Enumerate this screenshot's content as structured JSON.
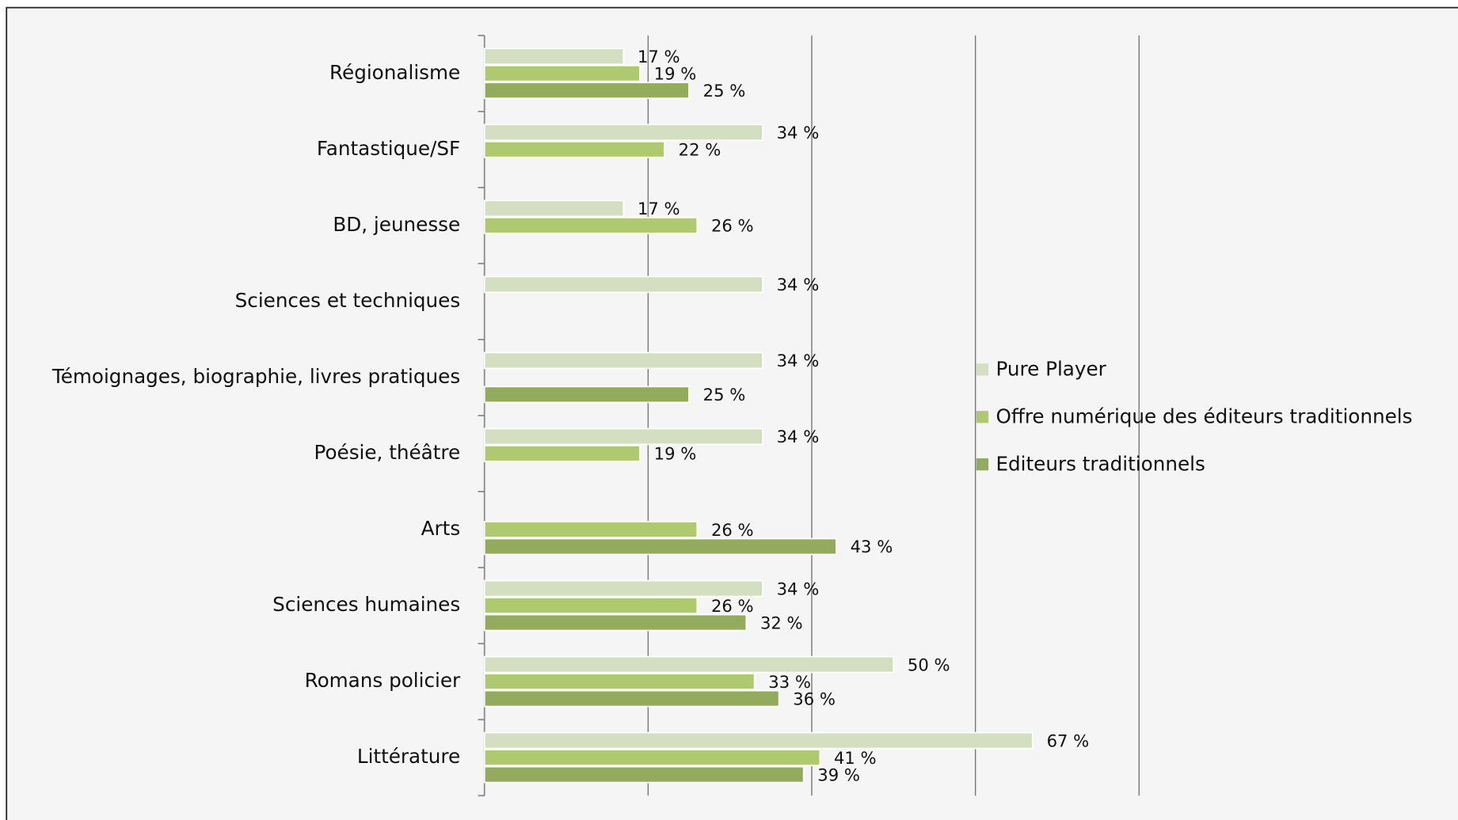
{
  "chart_data": {
    "type": "bar",
    "orientation": "horizontal",
    "categories": [
      "Régionalisme",
      "Fantastique/SF",
      "BD, jeunesse",
      "Sciences et techniques",
      "Témoignages, biographie, livres pratiques",
      "Poésie, théâtre",
      "Arts",
      "Sciences humaines",
      "Romans policier",
      "Littérature"
    ],
    "series": [
      {
        "name": "Pure Player",
        "color": "#d3dfc0",
        "values": [
          17,
          34,
          17,
          34,
          34,
          34,
          null,
          34,
          50,
          67
        ],
        "value_labels": [
          "17 %",
          "34 %",
          "17 %",
          "34 %",
          "34 %",
          "34 %",
          null,
          "34 %",
          "50 %",
          "67 %"
        ]
      },
      {
        "name": "Offre numérique des éditeurs traditionnels",
        "color": "#aec96e",
        "values": [
          19,
          22,
          26,
          null,
          null,
          19,
          26,
          26,
          33,
          41
        ],
        "value_labels": [
          "19 %",
          "22 %",
          "26 %",
          null,
          null,
          "19 %",
          "26 %",
          "26 %",
          "33 %",
          "41 %"
        ]
      },
      {
        "name": "Editeurs traditionnels",
        "color": "#93ab5c",
        "values": [
          25,
          null,
          null,
          null,
          25,
          null,
          43,
          32,
          36,
          39
        ],
        "value_labels": [
          "25 %",
          null,
          null,
          null,
          "25 %",
          null,
          "43 %",
          "32 %",
          "36 %",
          "39 %"
        ]
      }
    ],
    "xlim": [
      0,
      80
    ],
    "xticks": [
      0,
      20,
      40,
      60,
      80
    ],
    "grid": true,
    "legend": "right"
  }
}
